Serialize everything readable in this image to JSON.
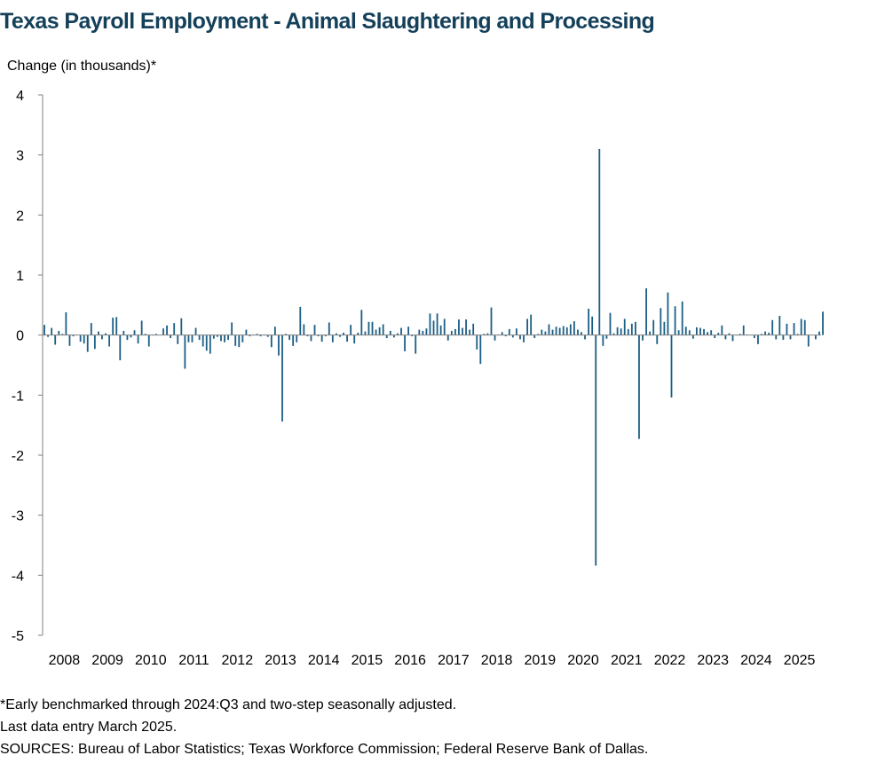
{
  "chart_data": {
    "type": "bar",
    "title": "Texas Payroll Employment - Animal Slaughtering and Processing",
    "ylabel": "Change (in thousands)*",
    "xlabel": "",
    "ylim": [
      -5,
      4
    ],
    "yticks": [
      "4",
      "3",
      "2",
      "1",
      "0",
      "-1",
      "-2",
      "-3",
      "-4",
      "-5"
    ],
    "xticks": [
      "2008",
      "2009",
      "2010",
      "2011",
      "2012",
      "2013",
      "2014",
      "2015",
      "2016",
      "2017",
      "2018",
      "2019",
      "2020",
      "2021",
      "2022",
      "2023",
      "2024",
      "2025"
    ],
    "start": "2008-01",
    "end": "2025-03",
    "bar_color": "#1b5e85",
    "values": [
      0.17,
      -0.03,
      0.12,
      -0.16,
      0.07,
      0.02,
      0.38,
      -0.18,
      -0.02,
      0.0,
      -0.11,
      -0.14,
      -0.28,
      0.2,
      -0.23,
      0.06,
      -0.07,
      0.03,
      -0.19,
      0.29,
      0.3,
      -0.42,
      0.07,
      -0.08,
      -0.04,
      0.08,
      -0.14,
      0.24,
      0.02,
      -0.19,
      0.01,
      0.02,
      0.0,
      0.11,
      0.16,
      -0.05,
      0.2,
      -0.15,
      0.28,
      -0.56,
      -0.12,
      -0.12,
      0.12,
      -0.08,
      -0.19,
      -0.26,
      -0.31,
      -0.06,
      -0.03,
      -0.1,
      -0.12,
      -0.08,
      0.21,
      -0.18,
      -0.2,
      -0.12,
      0.09,
      -0.02,
      0.01,
      0.02,
      -0.02,
      0.01,
      -0.03,
      -0.2,
      0.14,
      -0.34,
      -1.44,
      0.02,
      -0.08,
      -0.18,
      -0.12,
      0.47,
      0.18,
      -0.02,
      -0.1,
      0.17,
      -0.02,
      -0.11,
      -0.02,
      0.21,
      -0.12,
      0.03,
      -0.03,
      0.04,
      -0.11,
      0.17,
      -0.14,
      0.04,
      0.42,
      0.06,
      0.22,
      0.22,
      0.09,
      0.13,
      0.18,
      -0.05,
      0.07,
      -0.04,
      0.03,
      0.12,
      -0.27,
      0.14,
      -0.02,
      -0.31,
      0.09,
      0.07,
      0.11,
      0.36,
      0.24,
      0.36,
      0.16,
      0.27,
      -0.09,
      0.07,
      0.1,
      0.26,
      0.12,
      0.26,
      0.09,
      0.19,
      -0.24,
      -0.48,
      0.02,
      0.03,
      0.46,
      -0.09,
      0.01,
      0.05,
      -0.02,
      0.1,
      -0.04,
      0.11,
      -0.07,
      -0.12,
      0.27,
      0.34,
      -0.05,
      0.02,
      0.09,
      0.06,
      0.18,
      0.09,
      0.14,
      0.12,
      0.15,
      0.13,
      0.18,
      0.23,
      0.09,
      0.05,
      -0.07,
      0.44,
      0.31,
      -3.84,
      3.1,
      -0.18,
      -0.06,
      0.37,
      0.03,
      0.13,
      0.11,
      0.27,
      0.1,
      0.19,
      0.22,
      -1.73,
      -0.09,
      0.78,
      0.06,
      0.25,
      -0.15,
      0.45,
      0.22,
      0.71,
      -1.04,
      0.48,
      0.08,
      0.56,
      0.14,
      0.08,
      -0.06,
      0.13,
      0.12,
      0.1,
      0.05,
      0.08,
      -0.05,
      0.04,
      0.16,
      -0.07,
      0.03,
      -0.1,
      0.01,
      0.02,
      0.16,
      0.01,
      0.0,
      -0.05,
      -0.15,
      0.02,
      0.06,
      0.04,
      0.25,
      -0.07,
      0.32,
      -0.08,
      0.19,
      -0.07,
      0.2,
      0.02,
      0.27,
      0.25,
      -0.19,
      0.0,
      -0.07,
      0.06,
      0.39
    ]
  },
  "notes": [
    "*Early benchmarked through 2024:Q3 and two-step seasonally adjusted.",
    "Last data entry March 2025.",
    "SOURCES: Bureau of Labor Statistics; Texas Workforce Commission; Federal Reserve Bank of Dallas."
  ]
}
